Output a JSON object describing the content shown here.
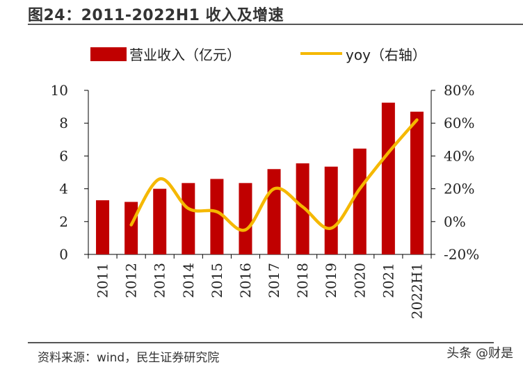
{
  "header": {
    "title": "图24：2011-2022H1 收入及增速"
  },
  "footer": {
    "source": "资料来源：wind，民生证券研究院",
    "watermark": "头条 @财是"
  },
  "colors": {
    "bar": "#c00000",
    "line": "#f5b800",
    "axis": "#000000"
  },
  "chart_data": {
    "type": "bar",
    "title": "2011-2022H1 收入及增速",
    "categories": [
      "2011",
      "2012",
      "2013",
      "2014",
      "2015",
      "2016",
      "2017",
      "2018",
      "2019",
      "2020",
      "2021",
      "2022H1"
    ],
    "series": [
      {
        "name": "营业收入（亿元）",
        "type": "bar",
        "axis": "left",
        "values": [
          3.3,
          3.2,
          4.0,
          4.35,
          4.6,
          4.35,
          5.2,
          5.55,
          5.35,
          6.45,
          9.25,
          8.7
        ]
      },
      {
        "name": "yoy（右轴）",
        "type": "line",
        "axis": "right",
        "values": [
          null,
          -2,
          26,
          8,
          6,
          -5,
          20,
          9,
          -4,
          20,
          42,
          62
        ]
      }
    ],
    "left_axis": {
      "ylim": [
        0,
        10
      ],
      "ticks": [
        "0",
        "2",
        "4",
        "6",
        "8",
        "10"
      ]
    },
    "right_axis": {
      "ylim": [
        -20,
        80
      ],
      "ticks": [
        "-20%",
        "0%",
        "20%",
        "40%",
        "60%",
        "80%"
      ]
    },
    "legend": [
      "营业收入（亿元）",
      "yoy（右轴）"
    ],
    "legend_position": "top"
  }
}
